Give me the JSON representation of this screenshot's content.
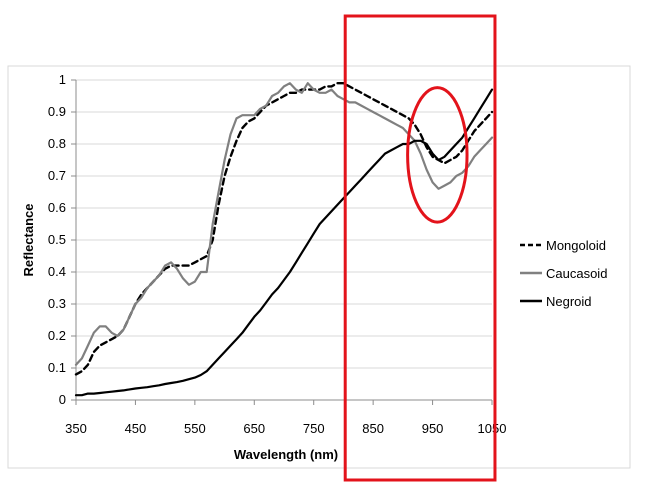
{
  "chart_data": {
    "type": "line",
    "xlabel": "Wavelength (nm)",
    "ylabel": "Reflectance",
    "xlim": [
      350,
      1050
    ],
    "ylim": [
      0,
      1
    ],
    "xticks": [
      350,
      450,
      550,
      650,
      750,
      850,
      950,
      1050
    ],
    "yticks": [
      0,
      0.1,
      0.2,
      0.3,
      0.4,
      0.5,
      0.6,
      0.7,
      0.8,
      0.9,
      1
    ],
    "grid": true,
    "legend_position": "right",
    "series": [
      {
        "name": "Mongoloid",
        "style": "dashed",
        "color": "#000000",
        "points": [
          [
            350,
            0.08
          ],
          [
            360,
            0.09
          ],
          [
            370,
            0.11
          ],
          [
            380,
            0.15
          ],
          [
            390,
            0.17
          ],
          [
            400,
            0.18
          ],
          [
            410,
            0.19
          ],
          [
            420,
            0.2
          ],
          [
            430,
            0.22
          ],
          [
            440,
            0.26
          ],
          [
            450,
            0.3
          ],
          [
            460,
            0.33
          ],
          [
            470,
            0.35
          ],
          [
            480,
            0.37
          ],
          [
            490,
            0.39
          ],
          [
            500,
            0.41
          ],
          [
            510,
            0.42
          ],
          [
            520,
            0.42
          ],
          [
            530,
            0.42
          ],
          [
            540,
            0.42
          ],
          [
            550,
            0.43
          ],
          [
            560,
            0.44
          ],
          [
            570,
            0.45
          ],
          [
            580,
            0.5
          ],
          [
            590,
            0.61
          ],
          [
            600,
            0.7
          ],
          [
            610,
            0.76
          ],
          [
            620,
            0.81
          ],
          [
            630,
            0.85
          ],
          [
            640,
            0.87
          ],
          [
            650,
            0.88
          ],
          [
            660,
            0.9
          ],
          [
            670,
            0.92
          ],
          [
            680,
            0.93
          ],
          [
            690,
            0.94
          ],
          [
            700,
            0.95
          ],
          [
            710,
            0.96
          ],
          [
            720,
            0.96
          ],
          [
            730,
            0.97
          ],
          [
            740,
            0.97
          ],
          [
            750,
            0.97
          ],
          [
            760,
            0.97
          ],
          [
            770,
            0.98
          ],
          [
            780,
            0.98
          ],
          [
            790,
            0.99
          ],
          [
            800,
            0.99
          ],
          [
            810,
            0.98
          ],
          [
            820,
            0.97
          ],
          [
            830,
            0.96
          ],
          [
            840,
            0.95
          ],
          [
            850,
            0.94
          ],
          [
            860,
            0.93
          ],
          [
            870,
            0.92
          ],
          [
            880,
            0.91
          ],
          [
            890,
            0.9
          ],
          [
            900,
            0.89
          ],
          [
            910,
            0.88
          ],
          [
            920,
            0.86
          ],
          [
            930,
            0.83
          ],
          [
            940,
            0.79
          ],
          [
            950,
            0.76
          ],
          [
            960,
            0.75
          ],
          [
            970,
            0.74
          ],
          [
            980,
            0.75
          ],
          [
            990,
            0.76
          ],
          [
            1000,
            0.78
          ],
          [
            1010,
            0.81
          ],
          [
            1020,
            0.84
          ],
          [
            1030,
            0.86
          ],
          [
            1040,
            0.88
          ],
          [
            1050,
            0.9
          ]
        ]
      },
      {
        "name": "Caucasoid",
        "style": "solid",
        "color": "#808080",
        "points": [
          [
            350,
            0.11
          ],
          [
            360,
            0.13
          ],
          [
            370,
            0.17
          ],
          [
            380,
            0.21
          ],
          [
            390,
            0.23
          ],
          [
            400,
            0.23
          ],
          [
            410,
            0.21
          ],
          [
            420,
            0.2
          ],
          [
            430,
            0.22
          ],
          [
            440,
            0.26
          ],
          [
            450,
            0.3
          ],
          [
            460,
            0.32
          ],
          [
            470,
            0.35
          ],
          [
            480,
            0.37
          ],
          [
            490,
            0.39
          ],
          [
            500,
            0.42
          ],
          [
            510,
            0.43
          ],
          [
            520,
            0.41
          ],
          [
            530,
            0.38
          ],
          [
            540,
            0.36
          ],
          [
            550,
            0.37
          ],
          [
            560,
            0.4
          ],
          [
            570,
            0.4
          ],
          [
            580,
            0.55
          ],
          [
            590,
            0.65
          ],
          [
            600,
            0.75
          ],
          [
            610,
            0.83
          ],
          [
            620,
            0.88
          ],
          [
            630,
            0.89
          ],
          [
            640,
            0.89
          ],
          [
            650,
            0.89
          ],
          [
            660,
            0.91
          ],
          [
            670,
            0.92
          ],
          [
            680,
            0.95
          ],
          [
            690,
            0.96
          ],
          [
            700,
            0.98
          ],
          [
            710,
            0.99
          ],
          [
            720,
            0.97
          ],
          [
            730,
            0.96
          ],
          [
            740,
            0.99
          ],
          [
            750,
            0.97
          ],
          [
            760,
            0.96
          ],
          [
            770,
            0.96
          ],
          [
            780,
            0.97
          ],
          [
            790,
            0.95
          ],
          [
            800,
            0.94
          ],
          [
            810,
            0.93
          ],
          [
            820,
            0.93
          ],
          [
            830,
            0.92
          ],
          [
            840,
            0.91
          ],
          [
            850,
            0.9
          ],
          [
            860,
            0.89
          ],
          [
            870,
            0.88
          ],
          [
            880,
            0.87
          ],
          [
            890,
            0.86
          ],
          [
            900,
            0.85
          ],
          [
            910,
            0.83
          ],
          [
            920,
            0.81
          ],
          [
            930,
            0.77
          ],
          [
            940,
            0.72
          ],
          [
            950,
            0.68
          ],
          [
            960,
            0.66
          ],
          [
            970,
            0.67
          ],
          [
            980,
            0.68
          ],
          [
            990,
            0.7
          ],
          [
            1000,
            0.71
          ],
          [
            1010,
            0.73
          ],
          [
            1020,
            0.76
          ],
          [
            1030,
            0.78
          ],
          [
            1040,
            0.8
          ],
          [
            1050,
            0.82
          ]
        ]
      },
      {
        "name": "Negroid",
        "style": "solid",
        "color": "#000000",
        "points": [
          [
            350,
            0.015
          ],
          [
            360,
            0.015
          ],
          [
            370,
            0.02
          ],
          [
            380,
            0.02
          ],
          [
            390,
            0.022
          ],
          [
            400,
            0.024
          ],
          [
            410,
            0.026
          ],
          [
            420,
            0.028
          ],
          [
            430,
            0.03
          ],
          [
            440,
            0.033
          ],
          [
            450,
            0.036
          ],
          [
            460,
            0.038
          ],
          [
            470,
            0.04
          ],
          [
            480,
            0.043
          ],
          [
            490,
            0.046
          ],
          [
            500,
            0.05
          ],
          [
            510,
            0.053
          ],
          [
            520,
            0.056
          ],
          [
            530,
            0.06
          ],
          [
            540,
            0.065
          ],
          [
            550,
            0.07
          ],
          [
            560,
            0.078
          ],
          [
            570,
            0.09
          ],
          [
            580,
            0.11
          ],
          [
            590,
            0.13
          ],
          [
            600,
            0.15
          ],
          [
            610,
            0.17
          ],
          [
            620,
            0.19
          ],
          [
            630,
            0.21
          ],
          [
            640,
            0.235
          ],
          [
            650,
            0.26
          ],
          [
            660,
            0.28
          ],
          [
            670,
            0.305
          ],
          [
            680,
            0.33
          ],
          [
            690,
            0.35
          ],
          [
            700,
            0.375
          ],
          [
            710,
            0.4
          ],
          [
            720,
            0.43
          ],
          [
            730,
            0.46
          ],
          [
            740,
            0.49
          ],
          [
            750,
            0.52
          ],
          [
            760,
            0.55
          ],
          [
            770,
            0.57
          ],
          [
            780,
            0.59
          ],
          [
            790,
            0.61
          ],
          [
            800,
            0.63
          ],
          [
            810,
            0.65
          ],
          [
            820,
            0.67
          ],
          [
            830,
            0.69
          ],
          [
            840,
            0.71
          ],
          [
            850,
            0.73
          ],
          [
            860,
            0.75
          ],
          [
            870,
            0.77
          ],
          [
            880,
            0.78
          ],
          [
            890,
            0.79
          ],
          [
            900,
            0.8
          ],
          [
            910,
            0.8
          ],
          [
            920,
            0.81
          ],
          [
            930,
            0.81
          ],
          [
            940,
            0.8
          ],
          [
            950,
            0.77
          ],
          [
            960,
            0.75
          ],
          [
            970,
            0.76
          ],
          [
            980,
            0.78
          ],
          [
            990,
            0.8
          ],
          [
            1000,
            0.82
          ],
          [
            1010,
            0.85
          ],
          [
            1020,
            0.88
          ],
          [
            1030,
            0.91
          ],
          [
            1040,
            0.94
          ],
          [
            1050,
            0.97
          ]
        ]
      }
    ],
    "annotations": [
      {
        "type": "rectangle",
        "color": "#e3131b",
        "x_range": [
          803,
          1055
        ],
        "y_range": [
          -0.25,
          1.2
        ]
      },
      {
        "type": "ellipse",
        "color": "#e3131b",
        "center": [
          958,
          0.766
        ],
        "radii_data": [
          50,
          0.21
        ]
      }
    ]
  }
}
